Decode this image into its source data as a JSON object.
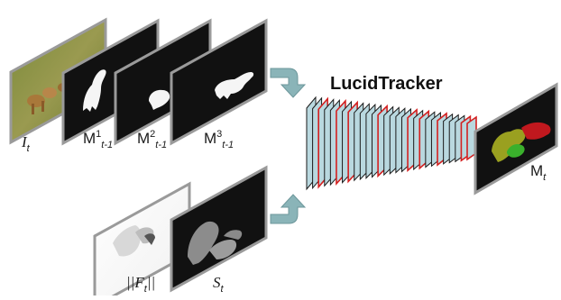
{
  "title": "LucidTracker",
  "inputs": {
    "image": {
      "main": "I",
      "sub": "t"
    },
    "mask1": {
      "main": "M",
      "sup": "1",
      "sub": "t-1"
    },
    "mask2": {
      "main": "M",
      "sup": "2",
      "sub": "t-1"
    },
    "mask3": {
      "main": "M",
      "sup": "3",
      "sub": "t-1"
    },
    "flow": {
      "main": "||F",
      "sub": "t",
      "end": "||"
    },
    "saliency": {
      "main": "S",
      "sub": "t"
    }
  },
  "output": {
    "main": "M",
    "sub": "t"
  },
  "colors": {
    "panel": "#111111",
    "border": "#9a9a9a",
    "arrow": "#8ab4b8",
    "layer": "#b9d8df",
    "layer_red": "#d42020",
    "mask_yellow": "#9aa020",
    "mask_red": "#c0181e",
    "mask_green": "#3ab02c"
  }
}
